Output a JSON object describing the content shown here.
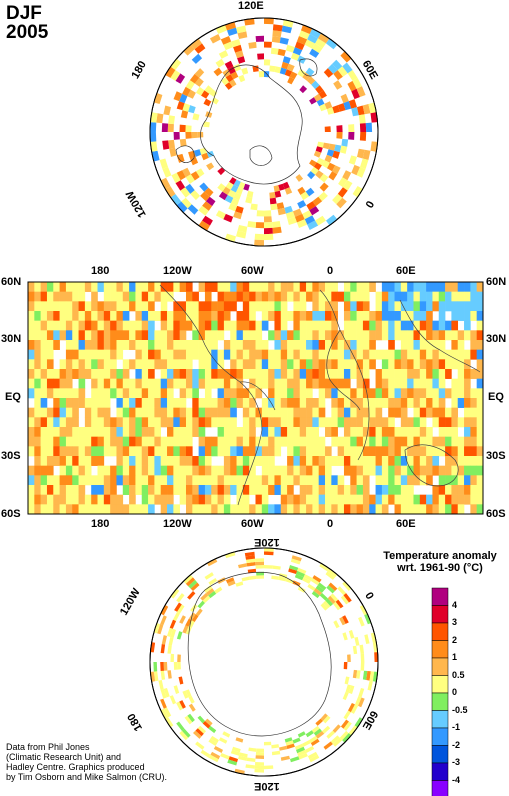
{
  "title": {
    "line1": "DJF",
    "line2": "2005"
  },
  "north_polar": {
    "labels": {
      "top": "120E",
      "left": "180",
      "right": "60E",
      "bottom_left": "120W",
      "bottom_right": "0"
    }
  },
  "equatorial": {
    "top_lon": [
      "180",
      "120W",
      "60W",
      "0",
      "60E"
    ],
    "bottom_lon": [
      "180",
      "120W",
      "60W",
      "0",
      "60E"
    ],
    "left_lat": [
      "60N",
      "30N",
      "EQ",
      "30S",
      "60S"
    ],
    "right_lat": [
      "60N",
      "30N",
      "EQ",
      "30S",
      "60S"
    ]
  },
  "south_polar": {
    "labels": {
      "top": "120E",
      "left": "120W",
      "right": "0",
      "bottom_left": "180",
      "bottom_right": "60E",
      "bottom": "120E"
    }
  },
  "legend": {
    "title_line1": "Temperature anomaly",
    "title_line2": "wrt. 1961-90  (°C)",
    "levels": [
      "4",
      "3",
      "2",
      "1",
      "0.5",
      "0",
      "-0.5",
      "-1",
      "-2",
      "-3",
      "-4"
    ],
    "colors": [
      "#b0007f",
      "#e0002a",
      "#ff5500",
      "#ff8c1a",
      "#ffb74d",
      "#ffff80",
      "#80ee60",
      "#66ccff",
      "#3399ff",
      "#0055dd",
      "#2200cc",
      "#8800ff"
    ]
  },
  "credit": {
    "line1": "Data from Phil Jones",
    "line2": "(Climatic Research Unit) and",
    "line3": "Hadley Centre.  Graphics produced",
    "line4": "by Tim Osborn and Mike Salmon (CRU)."
  }
}
